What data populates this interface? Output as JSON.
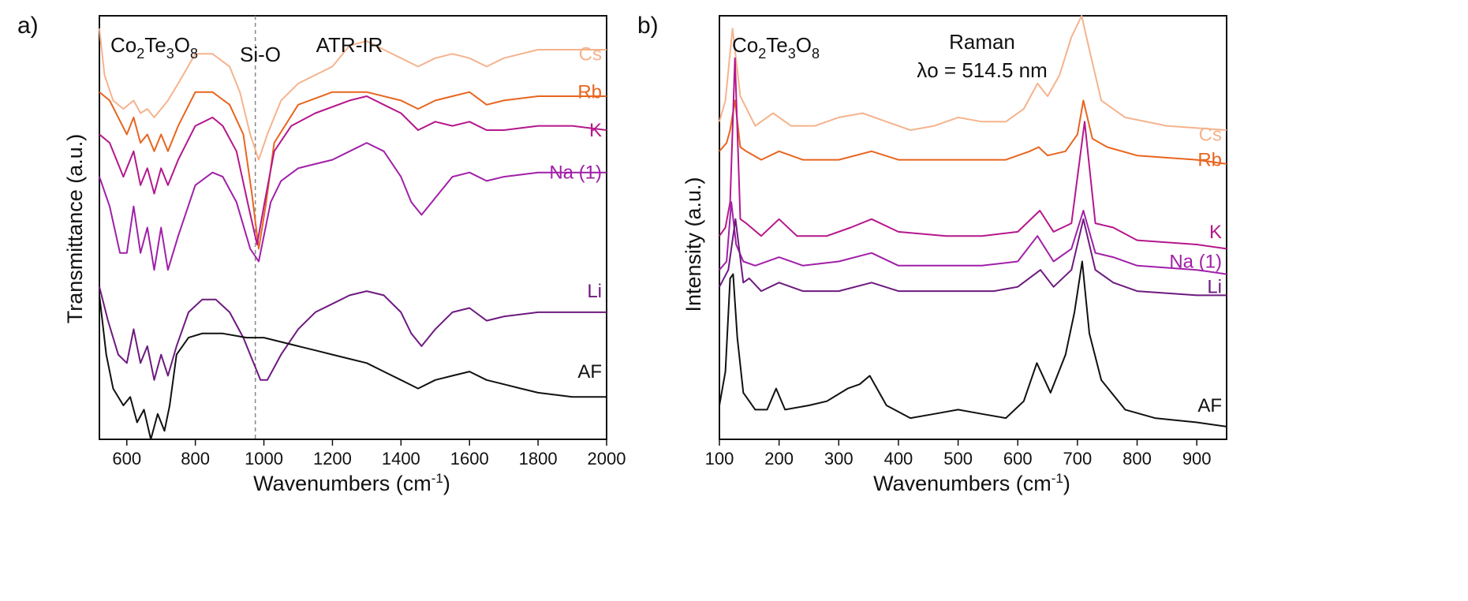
{
  "chart_data": [
    {
      "panel_label": "a)",
      "type": "line",
      "technique": "ATR-IR",
      "compound": "Co2Te3O8",
      "annotation": "Si-O",
      "reference_line_x": 975,
      "xlabel": "Wavenumbers",
      "xlabel_unit": "(cm-1)",
      "ylabel": "Transmittance (a.u.)",
      "xlim": [
        520,
        2000
      ],
      "xticks": [
        600,
        800,
        1000,
        1200,
        1400,
        1600,
        1800,
        2000
      ],
      "ylim": [
        0,
        100
      ],
      "series": [
        {
          "name": "Cs",
          "color": "#f5b38e",
          "label_y": 91,
          "x": [
            520,
            535,
            560,
            590,
            620,
            640,
            660,
            680,
            700,
            720,
            750,
            800,
            850,
            900,
            930,
            960,
            985,
            1010,
            1050,
            1100,
            1200,
            1250,
            1300,
            1350,
            1400,
            1450,
            1500,
            1550,
            1600,
            1650,
            1700,
            1800,
            1900,
            2000
          ],
          "y": [
            97,
            86,
            80,
            78,
            80,
            77,
            78,
            76,
            78,
            80,
            84,
            91,
            91,
            88,
            82,
            72,
            66,
            72,
            80,
            84,
            88,
            93,
            94,
            92,
            90,
            88,
            90,
            91,
            90,
            88,
            90,
            92,
            92,
            92
          ]
        },
        {
          "name": "Rb",
          "color": "#e8651f",
          "label_y": 82,
          "x": [
            520,
            550,
            600,
            620,
            640,
            660,
            680,
            700,
            720,
            750,
            800,
            850,
            900,
            940,
            965,
            985,
            1005,
            1030,
            1100,
            1200,
            1300,
            1400,
            1450,
            1500,
            1550,
            1600,
            1650,
            1700,
            1800,
            1900,
            2000
          ],
          "y": [
            82,
            80,
            72,
            76,
            70,
            72,
            68,
            72,
            68,
            74,
            82,
            82,
            79,
            72,
            58,
            45,
            55,
            70,
            79,
            82,
            82,
            80,
            78,
            80,
            81,
            82,
            79,
            80,
            81,
            81,
            81
          ]
        },
        {
          "name": "K",
          "color": "#b5178c",
          "label_y": 73,
          "x": [
            520,
            550,
            590,
            620,
            640,
            660,
            680,
            700,
            720,
            750,
            800,
            850,
            880,
            920,
            955,
            980,
            1000,
            1030,
            1080,
            1150,
            1250,
            1300,
            1350,
            1400,
            1450,
            1500,
            1550,
            1600,
            1650,
            1700,
            1800,
            1900,
            2000
          ],
          "y": [
            72,
            70,
            62,
            68,
            60,
            64,
            58,
            64,
            60,
            66,
            74,
            76,
            74,
            68,
            55,
            46,
            55,
            68,
            74,
            77,
            80,
            81,
            79,
            77,
            73,
            75,
            74,
            75,
            73,
            73,
            74,
            74,
            73
          ]
        },
        {
          "name": "Na (1)",
          "color": "#a020a8",
          "label_y": 63,
          "x": [
            520,
            550,
            580,
            600,
            620,
            640,
            660,
            680,
            700,
            720,
            750,
            800,
            850,
            880,
            920,
            960,
            985,
            1000,
            1020,
            1050,
            1100,
            1150,
            1200,
            1250,
            1300,
            1350,
            1400,
            1430,
            1460,
            1500,
            1550,
            1600,
            1650,
            1700,
            1800,
            1900,
            2000
          ],
          "y": [
            62,
            55,
            44,
            44,
            55,
            44,
            50,
            40,
            50,
            40,
            48,
            60,
            63,
            62,
            56,
            45,
            42,
            48,
            56,
            61,
            64,
            65,
            66,
            68,
            70,
            68,
            62,
            56,
            53,
            57,
            62,
            63,
            61,
            62,
            63,
            63,
            63
          ]
        },
        {
          "name": "Li",
          "color": "#6d1a7e",
          "label_y": 35,
          "x": [
            520,
            545,
            575,
            600,
            620,
            640,
            660,
            680,
            700,
            720,
            745,
            780,
            820,
            860,
            900,
            940,
            970,
            990,
            1010,
            1050,
            1100,
            1150,
            1200,
            1250,
            1300,
            1350,
            1400,
            1430,
            1460,
            1500,
            1550,
            1600,
            1650,
            1700,
            1800,
            1900,
            2000
          ],
          "y": [
            36,
            28,
            20,
            18,
            26,
            18,
            22,
            14,
            20,
            15,
            22,
            30,
            33,
            33,
            30,
            24,
            18,
            14,
            14,
            20,
            26,
            30,
            32,
            34,
            35,
            34,
            30,
            25,
            22,
            26,
            30,
            31,
            28,
            29,
            30,
            30,
            30
          ]
        },
        {
          "name": "AF",
          "color": "#111111",
          "label_y": 16,
          "x": [
            520,
            540,
            560,
            590,
            610,
            630,
            650,
            670,
            690,
            710,
            725,
            745,
            780,
            820,
            880,
            950,
            1000,
            1050,
            1100,
            1150,
            1200,
            1250,
            1300,
            1350,
            1400,
            1450,
            1500,
            1550,
            1600,
            1650,
            1700,
            1750,
            1800,
            1900,
            2000
          ],
          "y": [
            34,
            20,
            12,
            8,
            10,
            4,
            7,
            0,
            6,
            2,
            8,
            20,
            24,
            25,
            25,
            24,
            24,
            23,
            22,
            21,
            20,
            19,
            18,
            16,
            14,
            12,
            14,
            15,
            16,
            14,
            13,
            12,
            11,
            10,
            10
          ]
        }
      ]
    },
    {
      "panel_label": "b)",
      "type": "line",
      "technique": "Raman",
      "compound": "Co2Te3O8",
      "excitation": "λo = 514.5 nm",
      "xlabel": "Wavenumbers",
      "xlabel_unit": "(cm-1)",
      "ylabel": "Intensity (a.u.)",
      "xlim": [
        100,
        950
      ],
      "xticks": [
        100,
        200,
        300,
        400,
        500,
        600,
        700,
        800,
        900
      ],
      "ylim": [
        0,
        100
      ],
      "series": [
        {
          "name": "Cs",
          "color": "#f5b38e",
          "label_y": 72,
          "x": [
            100,
            110,
            122,
            135,
            160,
            190,
            220,
            260,
            300,
            340,
            380,
            420,
            460,
            500,
            540,
            580,
            610,
            633,
            650,
            670,
            690,
            707,
            720,
            740,
            780,
            850,
            950
          ],
          "y": [
            75,
            80,
            97,
            81,
            74,
            77,
            74,
            74,
            76,
            77,
            75,
            73,
            74,
            76,
            75,
            75,
            78,
            84,
            81,
            86,
            95,
            100,
            92,
            80,
            76,
            74,
            73
          ]
        },
        {
          "name": "Rb",
          "color": "#e8651f",
          "label_y": 66,
          "x": [
            100,
            112,
            118,
            126,
            135,
            145,
            170,
            200,
            240,
            300,
            355,
            400,
            500,
            580,
            620,
            635,
            650,
            680,
            700,
            710,
            725,
            750,
            800,
            900,
            950
          ],
          "y": [
            68,
            70,
            73,
            80,
            69,
            68,
            66,
            68,
            66,
            66,
            68,
            66,
            66,
            66,
            68,
            69,
            67,
            68,
            72,
            80,
            71,
            69,
            67,
            66,
            65
          ]
        },
        {
          "name": "K",
          "color": "#b5178c",
          "label_y": 49,
          "x": [
            100,
            110,
            118,
            126,
            135,
            145,
            170,
            200,
            230,
            280,
            320,
            355,
            400,
            480,
            540,
            600,
            637,
            660,
            690,
            712,
            730,
            760,
            800,
            900,
            950
          ],
          "y": [
            48,
            50,
            56,
            90,
            52,
            51,
            48,
            52,
            48,
            48,
            50,
            52,
            49,
            48,
            48,
            49,
            54,
            49,
            51,
            75,
            51,
            50,
            47,
            46,
            45
          ]
        },
        {
          "name": "Na (1)",
          "color": "#a020a8",
          "label_y": 42,
          "x": [
            100,
            112,
            120,
            128,
            140,
            160,
            200,
            240,
            300,
            355,
            400,
            480,
            540,
            600,
            633,
            660,
            690,
            710,
            730,
            760,
            800,
            900,
            950
          ],
          "y": [
            40,
            42,
            56,
            46,
            42,
            41,
            43,
            41,
            42,
            44,
            41,
            41,
            41,
            42,
            48,
            42,
            45,
            54,
            44,
            43,
            41,
            40,
            39
          ]
        },
        {
          "name": "Li",
          "color": "#6d1a7e",
          "label_y": 36,
          "x": [
            100,
            115,
            127,
            140,
            150,
            170,
            200,
            240,
            300,
            355,
            400,
            480,
            560,
            600,
            638,
            660,
            690,
            710,
            730,
            760,
            800,
            900,
            950
          ],
          "y": [
            36,
            40,
            52,
            37,
            38,
            35,
            37,
            35,
            35,
            37,
            35,
            35,
            35,
            36,
            40,
            36,
            40,
            52,
            40,
            37,
            35,
            34,
            34
          ]
        },
        {
          "name": "AF",
          "color": "#111111",
          "label_y": 8,
          "x": [
            100,
            110,
            118,
            123,
            130,
            140,
            160,
            180,
            195,
            210,
            250,
            280,
            315,
            335,
            352,
            380,
            420,
            460,
            500,
            540,
            580,
            610,
            632,
            655,
            680,
            695,
            708,
            720,
            740,
            780,
            830,
            900,
            950
          ],
          "y": [
            8,
            16,
            38,
            39,
            24,
            11,
            7,
            7,
            12,
            7,
            8,
            9,
            12,
            13,
            15,
            8,
            5,
            6,
            7,
            6,
            5,
            9,
            18,
            11,
            20,
            30,
            42,
            25,
            14,
            7,
            5,
            4,
            3
          ]
        }
      ]
    }
  ]
}
